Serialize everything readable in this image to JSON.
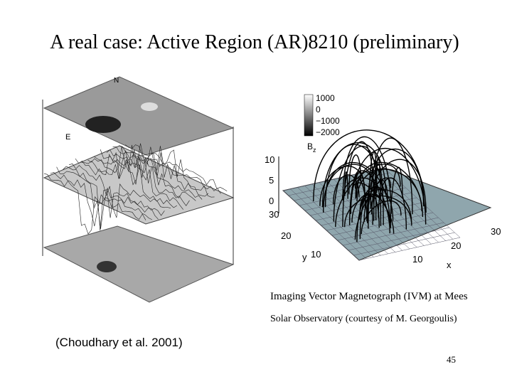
{
  "title": "A real case: Active Region (AR)8210 (preliminary)",
  "left_figure": {
    "labels": [
      "N",
      "E"
    ]
  },
  "right_figure": {
    "colorbar_labels": [
      "1000",
      "0",
      "−1000",
      "−2000"
    ],
    "colorbar_title": "B",
    "colorbar_subscript": "z",
    "z_ticks": [
      "10",
      "5",
      "0"
    ],
    "y_ticks": [
      "30",
      "20",
      "10"
    ],
    "x_ticks": [
      "10",
      "20",
      "30"
    ],
    "y_label": "y",
    "x_label": "x"
  },
  "caption_lines": [
    "Imaging Vector Magnetograph (IVM) at Mees",
    "Solar Observatory (courtesy of M. Georgoulis)"
  ],
  "citation": "(Choudhary et al. 2001)",
  "page_number": "45"
}
